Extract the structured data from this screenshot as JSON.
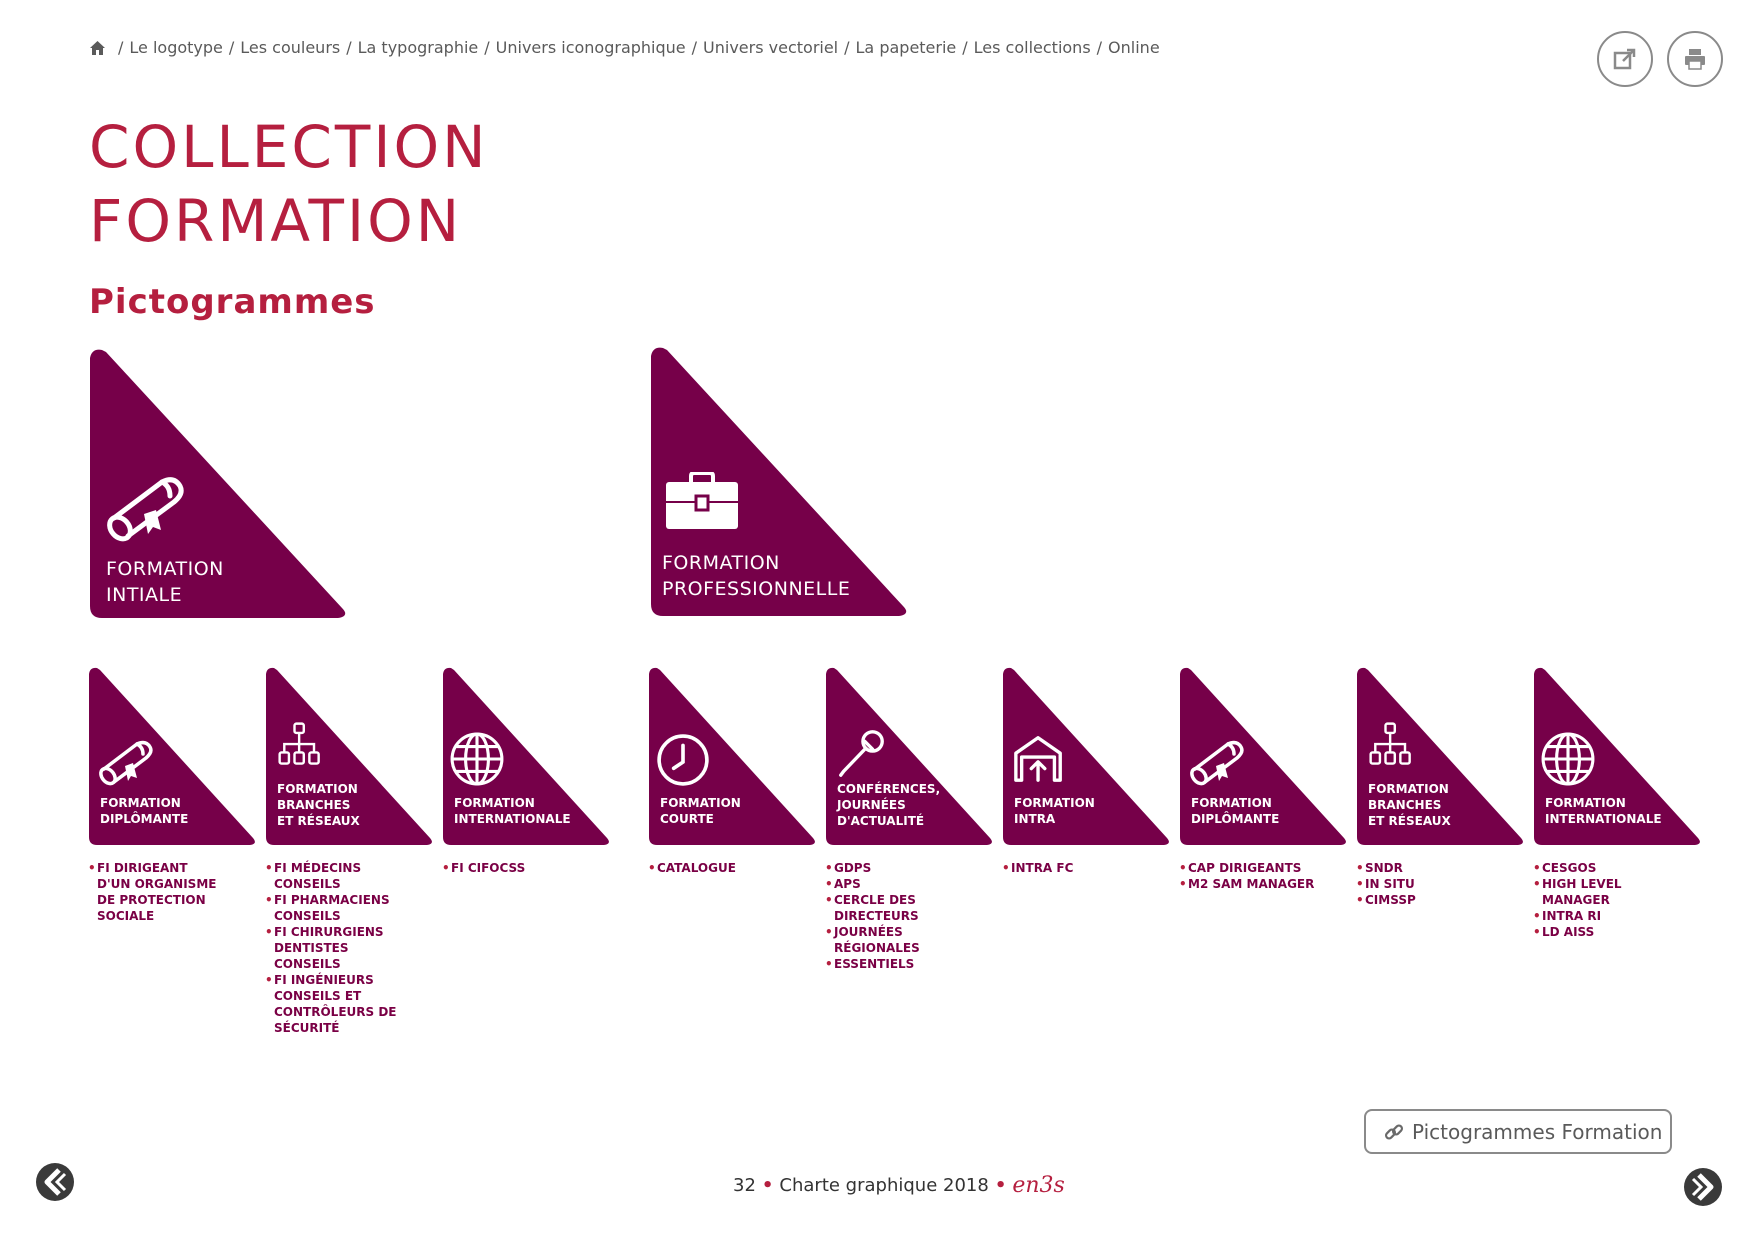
{
  "breadcrumb": {
    "items": [
      {
        "label": "Le logotype"
      },
      {
        "label": "Les couleurs"
      },
      {
        "label": "La typographie"
      },
      {
        "label": "Univers iconographique"
      },
      {
        "label": "Univers vectoriel"
      },
      {
        "label": "La papeterie"
      },
      {
        "label": "Les collections"
      },
      {
        "label": "Online"
      }
    ]
  },
  "title": {
    "line1": "COLLECTION",
    "line2": "FORMATION"
  },
  "subtitle": "Pictogrammes",
  "colors": {
    "primary": "#760049",
    "accent": "#b51f3f"
  },
  "big": [
    {
      "label": "FORMATION\nINTIALE",
      "icon": "diploma-icon"
    },
    {
      "label": "FORMATION\nPROFESSIONNELLE",
      "icon": "briefcase-icon"
    }
  ],
  "small": [
    {
      "label": "FORMATION\nDIPLÔMANTE",
      "icon": "diploma-icon",
      "items": [
        "FI DIRIGEANT\nD'UN ORGANISME\nDE PROTECTION\nSOCIALE"
      ]
    },
    {
      "label": "FORMATION\nBRANCHES\nET RÉSEAUX",
      "icon": "network-icon",
      "items": [
        "FI MÉDECINS\nCONSEILS",
        "FI PHARMACIENS\nCONSEILS",
        "FI CHIRURGIENS\nDENTISTES\nCONSEILS",
        "FI INGÉNIEURS\nCONSEILS ET\nCONTRÔLEURS DE\nSÉCURITÉ"
      ]
    },
    {
      "label": "FORMATION\nINTERNATIONALE",
      "icon": "globe-icon",
      "items": [
        "FI CIFOCSS"
      ]
    },
    {
      "label": "FORMATION\nCOURTE",
      "icon": "clock-icon",
      "items": [
        "CATALOGUE"
      ]
    },
    {
      "label": "CONFÉRENCES,\nJOURNÉES\nD'ACTUALITÉ",
      "icon": "microphone-icon",
      "items": [
        "GDPS",
        "APS",
        "CERCLE DES\nDIRECTEURS",
        "JOURNÉES\nRÉGIONALES",
        "ESSENTIELS"
      ]
    },
    {
      "label": "FORMATION\nINTRA",
      "icon": "house-arrow-icon",
      "items": [
        "INTRA FC"
      ]
    },
    {
      "label": "FORMATION\nDIPLÔMANTE",
      "icon": "diploma-icon",
      "items": [
        "CAP DIRIGEANTS",
        "M2 SAM MANAGER"
      ]
    },
    {
      "label": "FORMATION\nBRANCHES\nET RÉSEAUX",
      "icon": "network-icon",
      "items": [
        "SNDR",
        "IN SITU",
        "CIMSSP"
      ]
    },
    {
      "label": "FORMATION\nINTERNATIONALE",
      "icon": "globe-icon",
      "items": [
        "CESGOS",
        "HIGH LEVEL\nMANAGER",
        "INTRA RI",
        "LD AISS"
      ]
    }
  ],
  "link": {
    "label": "Pictogrammes Formation"
  },
  "footer": {
    "page": "32",
    "text": "Charte graphique 2018",
    "logo": "en3s"
  }
}
